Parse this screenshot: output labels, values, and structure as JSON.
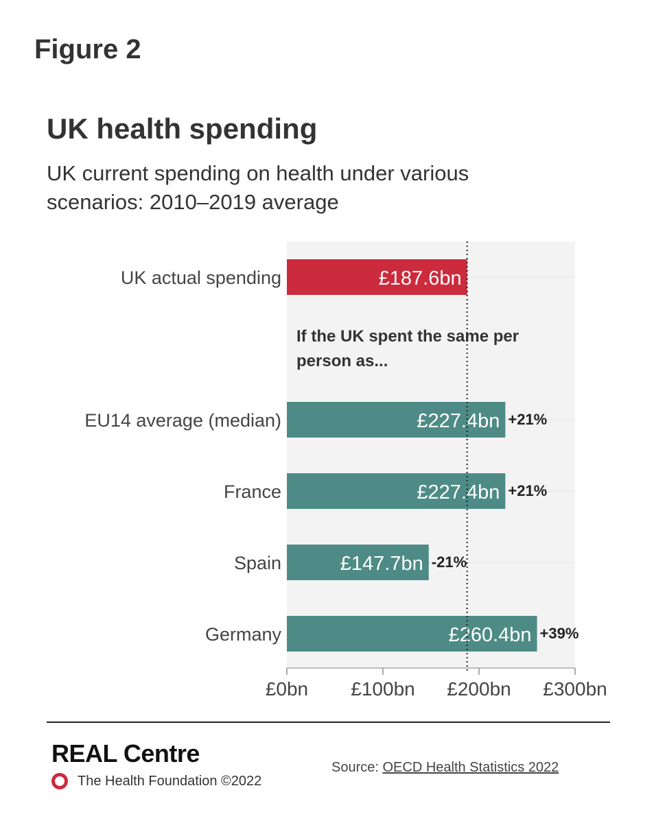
{
  "figure_label": "Figure 2",
  "chart_data": {
    "type": "bar",
    "orientation": "horizontal",
    "title": "UK health spending",
    "subtitle": "UK current spending on health under various scenarios: 2010–2019 average",
    "categories": [
      "UK actual spending",
      "EU14 average (median)",
      "France",
      "Spain",
      "Germany"
    ],
    "values": [
      187.6,
      227.4,
      227.4,
      147.7,
      260.4
    ],
    "value_labels": [
      "£187.6bn",
      "£227.4bn",
      "£227.4bn",
      "£147.7bn",
      "£260.4bn"
    ],
    "change_labels": [
      "",
      "+21%",
      "+21%",
      "-21%",
      "+39%"
    ],
    "bar_colors": [
      "#cc2b3d",
      "#4e8b86",
      "#4e8b86",
      "#4e8b86",
      "#4e8b86"
    ],
    "annotation": "If the UK spent the same per person as...",
    "reference_line": 187.6,
    "xlim": [
      0,
      300
    ],
    "x_ticks": [
      0,
      100,
      200,
      300
    ],
    "x_tick_labels": [
      "£0bn",
      "£100bn",
      "£200bn",
      "£300bn"
    ],
    "xlabel": "",
    "ylabel": "",
    "plot_background": "#f3f3f3",
    "grid": true
  },
  "footer": {
    "brand": "REAL Centre",
    "organization": "The Health Foundation ©2022",
    "source_prefix": "Source: ",
    "source_link": "OECD Health Statistics 2022"
  }
}
